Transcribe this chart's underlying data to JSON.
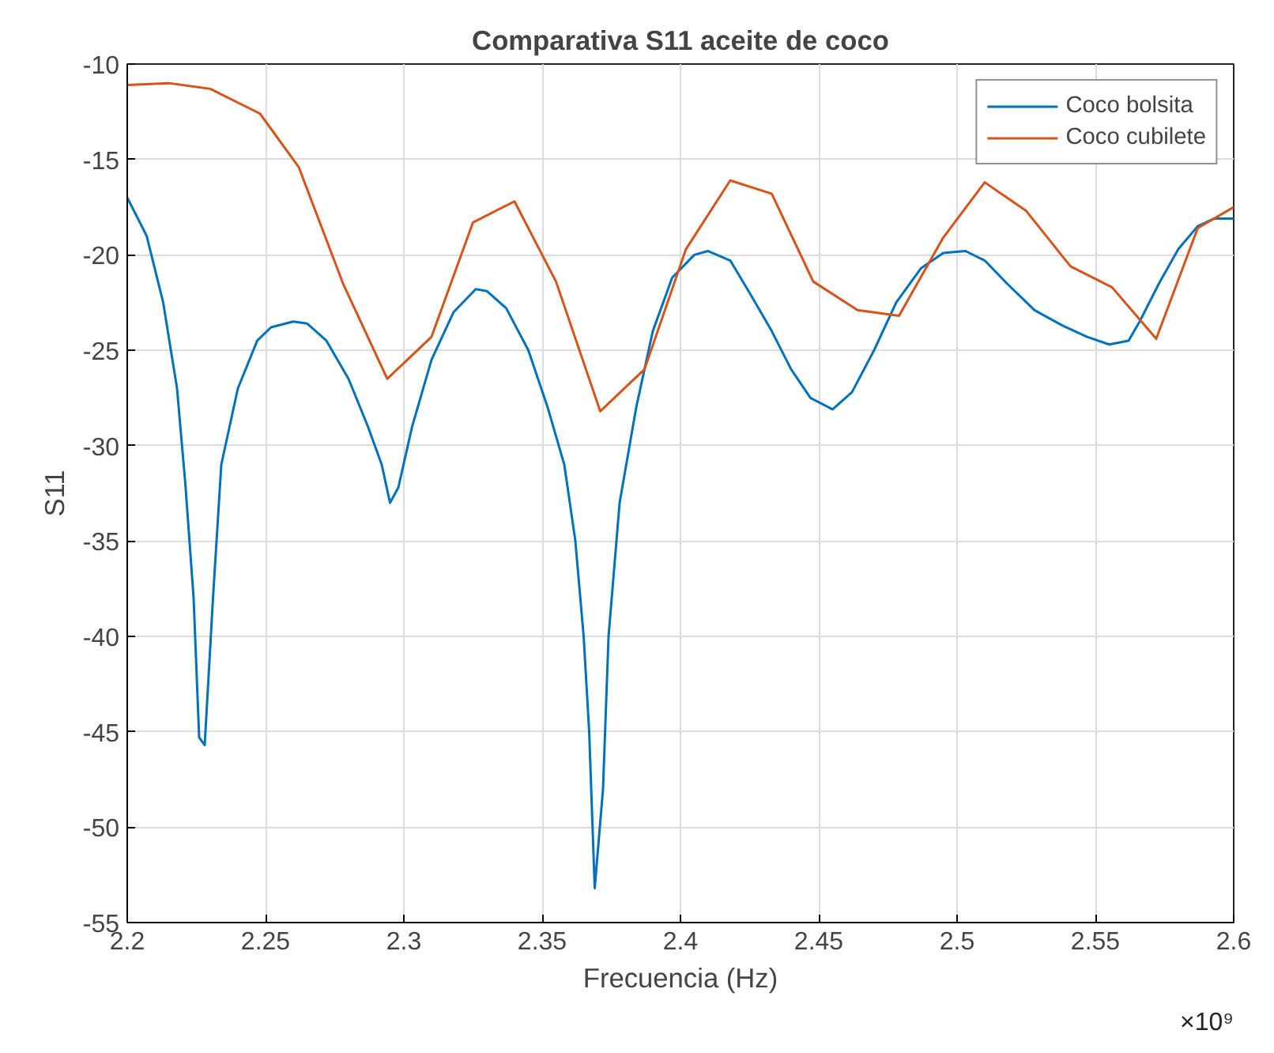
{
  "chart_data": {
    "type": "line",
    "title": "Comparativa S11 aceite de coco",
    "xlabel": "Frecuencia (Hz)",
    "ylabel": "S11",
    "annotations": [
      "×10⁹"
    ],
    "xlim": [
      2.2,
      2.6
    ],
    "ylim": [
      -55,
      -10
    ],
    "xticks": [
      2.2,
      2.25,
      2.3,
      2.35,
      2.4,
      2.45,
      2.5,
      2.55,
      2.6
    ],
    "yticks": [
      -55,
      -50,
      -45,
      -40,
      -35,
      -30,
      -25,
      -20,
      -15,
      -10
    ],
    "grid": true,
    "legend": "top right",
    "marker": "none",
    "line_style": "solid",
    "series": [
      {
        "name": "Coco bolsita",
        "color": "#0072bd",
        "x": [
          2.2,
          2.207,
          2.213,
          2.218,
          2.221,
          2.224,
          2.226,
          2.228,
          2.231,
          2.234,
          2.24,
          2.247,
          2.252,
          2.26,
          2.265,
          2.272,
          2.28,
          2.287,
          2.292,
          2.295,
          2.298,
          2.303,
          2.31,
          2.318,
          2.326,
          2.33,
          2.337,
          2.345,
          2.352,
          2.358,
          2.362,
          2.365,
          2.367,
          2.369,
          2.372,
          2.374,
          2.378,
          2.384,
          2.39,
          2.397,
          2.405,
          2.41,
          2.418,
          2.425,
          2.433,
          2.44,
          2.447,
          2.455,
          2.462,
          2.47,
          2.478,
          2.487,
          2.495,
          2.503,
          2.51,
          2.518,
          2.528,
          2.538,
          2.547,
          2.555,
          2.562,
          2.566,
          2.573,
          2.58,
          2.587,
          2.593,
          2.6
        ],
        "values": [
          -17,
          -19,
          -22.5,
          -27,
          -32,
          -38,
          -45.3,
          -45.7,
          -38,
          -31,
          -27,
          -24.5,
          -23.8,
          -23.5,
          -23.6,
          -24.5,
          -26.5,
          -29,
          -31,
          -33,
          -32.2,
          -29,
          -25.5,
          -23,
          -21.8,
          -21.9,
          -22.8,
          -25,
          -28,
          -31,
          -35,
          -40,
          -45,
          -53.2,
          -48,
          -40,
          -33,
          -28,
          -24,
          -21.2,
          -20,
          -19.8,
          -20.3,
          -22,
          -24,
          -26,
          -27.5,
          -28.1,
          -27.2,
          -25,
          -22.5,
          -20.7,
          -19.9,
          -19.8,
          -20.3,
          -21.5,
          -22.9,
          -23.7,
          -24.3,
          -24.7,
          -24.5,
          -23.5,
          -21.5,
          -19.7,
          -18.5,
          -18.1,
          -18.1
        ]
      },
      {
        "name": "Coco cubilete",
        "color": "#d95319",
        "x": [
          2.2,
          2.215,
          2.23,
          2.248,
          2.262,
          2.278,
          2.294,
          2.31,
          2.325,
          2.34,
          2.355,
          2.371,
          2.387,
          2.402,
          2.418,
          2.433,
          2.448,
          2.464,
          2.479,
          2.495,
          2.51,
          2.525,
          2.541,
          2.556,
          2.572,
          2.587,
          2.6
        ],
        "values": [
          -11.1,
          -11.0,
          -11.3,
          -12.6,
          -15.4,
          -21.5,
          -26.5,
          -24.3,
          -18.3,
          -17.2,
          -21.4,
          -28.2,
          -26.0,
          -19.7,
          -16.1,
          -16.8,
          -21.4,
          -22.9,
          -23.2,
          -19.1,
          -16.2,
          -17.7,
          -20.6,
          -21.7,
          -24.4,
          -18.6,
          -17.5
        ]
      }
    ]
  }
}
